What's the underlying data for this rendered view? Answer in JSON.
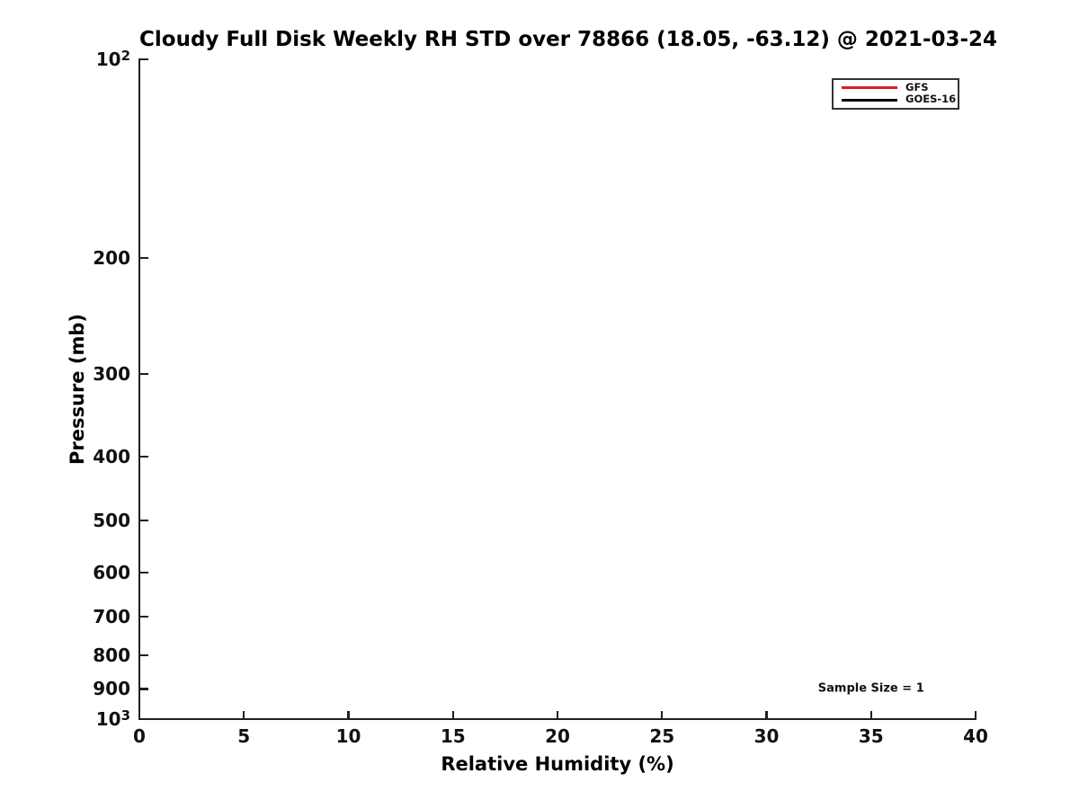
{
  "chart_data": {
    "type": "line",
    "title": "Cloudy Full Disk Weekly RH STD over 78866 (18.05, -63.12) @ 2021-03-24",
    "xlabel": "Relative Humidity (%)",
    "ylabel": "Pressure (mb)",
    "xlim": [
      0,
      40
    ],
    "xticks": [
      0,
      5,
      10,
      15,
      20,
      25,
      30,
      35,
      40
    ],
    "yscale": "log",
    "ylim": [
      100,
      1000
    ],
    "y_axis_inverted": true,
    "yticks": [
      {
        "value": 100,
        "base": "10",
        "sup": "2"
      },
      {
        "value": 200,
        "label": "200"
      },
      {
        "value": 300,
        "label": "300"
      },
      {
        "value": 400,
        "label": "400"
      },
      {
        "value": 500,
        "label": "500"
      },
      {
        "value": 600,
        "label": "600"
      },
      {
        "value": 700,
        "label": "700"
      },
      {
        "value": 800,
        "label": "800"
      },
      {
        "value": 900,
        "label": "900"
      },
      {
        "value": 1000,
        "base": "10",
        "sup": "3"
      }
    ],
    "grid": false,
    "legend_position": "top-right",
    "series": [
      {
        "name": "GFS",
        "color": "#d62020",
        "points": []
      },
      {
        "name": "GOES-16",
        "color": "#000000",
        "points": []
      }
    ],
    "annotations": [
      {
        "text": "Sample Size = 1",
        "x": 35,
        "y": 900
      }
    ]
  }
}
